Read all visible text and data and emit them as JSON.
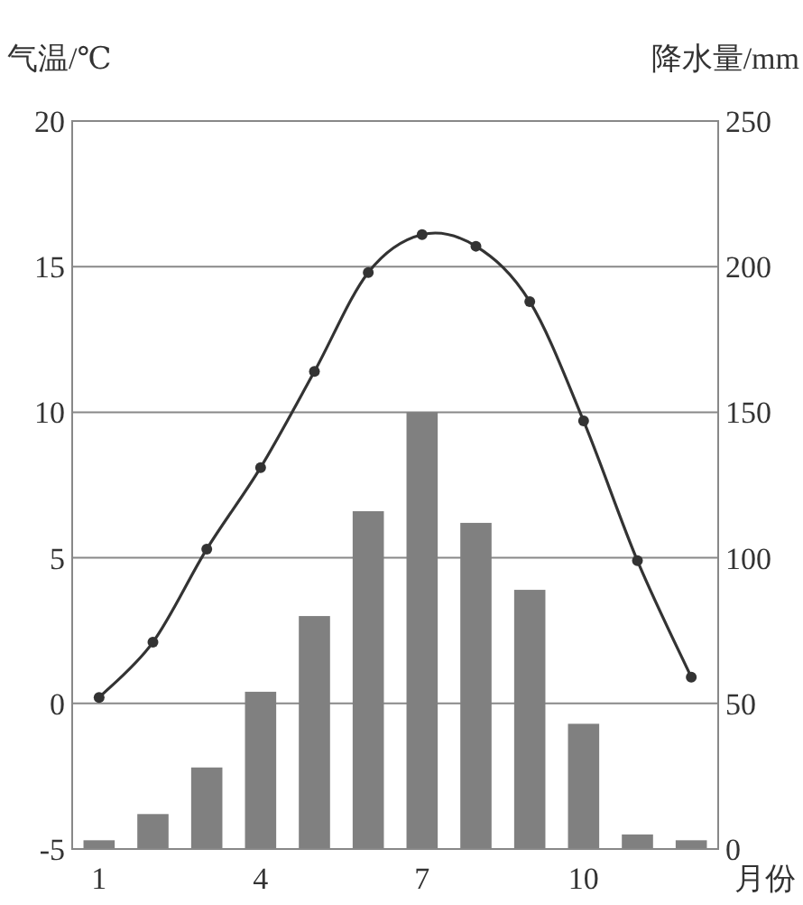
{
  "chart_data": {
    "type": "bar",
    "ylabel": "气温/℃",
    "y2label": "降水量/mm",
    "xlabel": "月份",
    "categories": [
      "1",
      null,
      null,
      "4",
      null,
      null,
      "7",
      null,
      null,
      "10",
      null,
      null
    ],
    "series": [
      {
        "axis": "y2",
        "color": "#808080",
        "values": [
          3,
          12,
          28,
          54,
          80,
          116,
          150,
          112,
          89,
          43,
          5,
          3
        ]
      },
      {
        "type": "line",
        "color": "#333333",
        "marker": "circle",
        "values": [
          0.2,
          2.1,
          5.3,
          8.1,
          11.4,
          14.8,
          16.1,
          15.7,
          13.8,
          9.7,
          4.9,
          0.9
        ]
      }
    ],
    "ylim": [
      -5,
      20
    ],
    "yticks": [
      -5,
      0,
      5,
      10,
      15,
      20
    ],
    "y2lim": [
      0,
      250
    ],
    "y2ticks": [
      0,
      50,
      100,
      150,
      200,
      250
    ],
    "grid": "y"
  }
}
